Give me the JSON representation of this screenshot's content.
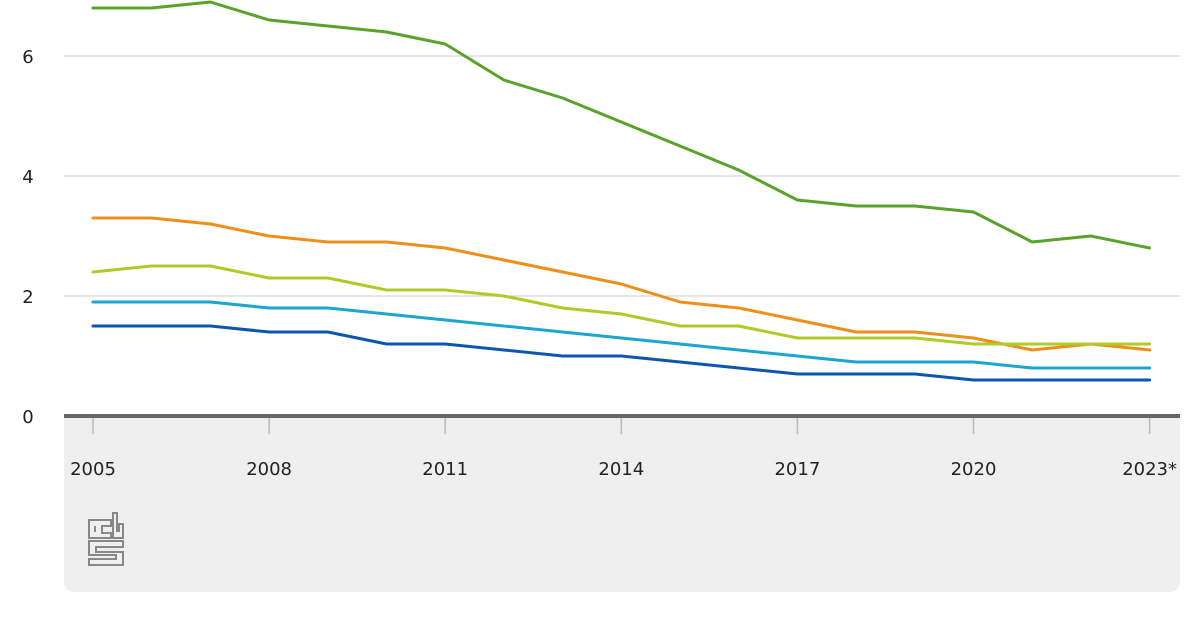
{
  "chart_data": {
    "type": "line",
    "title": "",
    "xlabel": "",
    "ylabel": "",
    "x": [
      "2005",
      "2006",
      "2007",
      "2008",
      "2009",
      "2010",
      "2011",
      "2012",
      "2013",
      "2014",
      "2015",
      "2016",
      "2017",
      "2018",
      "2019",
      "2020",
      "2021",
      "2022",
      "2023*"
    ],
    "x_tick_labels": [
      "2005",
      "2008",
      "2011",
      "2014",
      "2017",
      "2020",
      "2023*"
    ],
    "y_ticks": [
      "0",
      "2",
      "4",
      "6"
    ],
    "ylim": [
      0,
      7
    ],
    "grid": true,
    "legend": "none",
    "series": [
      {
        "color": "#5aa32b",
        "values": [
          6.8,
          6.8,
          6.9,
          6.6,
          6.5,
          6.4,
          6.2,
          5.6,
          5.3,
          4.9,
          4.5,
          4.1,
          3.6,
          3.5,
          3.5,
          3.4,
          2.9,
          3.0,
          2.8
        ]
      },
      {
        "color": "#ee8f1a",
        "values": [
          3.3,
          3.3,
          3.2,
          3.0,
          2.9,
          2.9,
          2.8,
          2.6,
          2.4,
          2.2,
          1.9,
          1.8,
          1.6,
          1.4,
          1.4,
          1.3,
          1.1,
          1.2,
          1.1
        ]
      },
      {
        "color": "#afcb27",
        "values": [
          2.4,
          2.5,
          2.5,
          2.3,
          2.3,
          2.1,
          2.1,
          2.0,
          1.8,
          1.7,
          1.5,
          1.5,
          1.3,
          1.3,
          1.3,
          1.2,
          1.2,
          1.2,
          1.2
        ]
      },
      {
        "color": "#1ba5d0",
        "values": [
          1.9,
          1.9,
          1.9,
          1.8,
          1.8,
          1.7,
          1.6,
          1.5,
          1.4,
          1.3,
          1.2,
          1.1,
          1.0,
          0.9,
          0.9,
          0.9,
          0.8,
          0.8,
          0.8
        ]
      },
      {
        "color": "#0d56ae",
        "values": [
          1.5,
          1.5,
          1.5,
          1.4,
          1.4,
          1.2,
          1.2,
          1.1,
          1.0,
          1.0,
          0.9,
          0.8,
          0.7,
          0.7,
          0.7,
          0.6,
          0.6,
          0.6,
          0.6
        ]
      }
    ]
  },
  "logo": {
    "name": "cbs-logo-icon",
    "text": "cbs"
  }
}
